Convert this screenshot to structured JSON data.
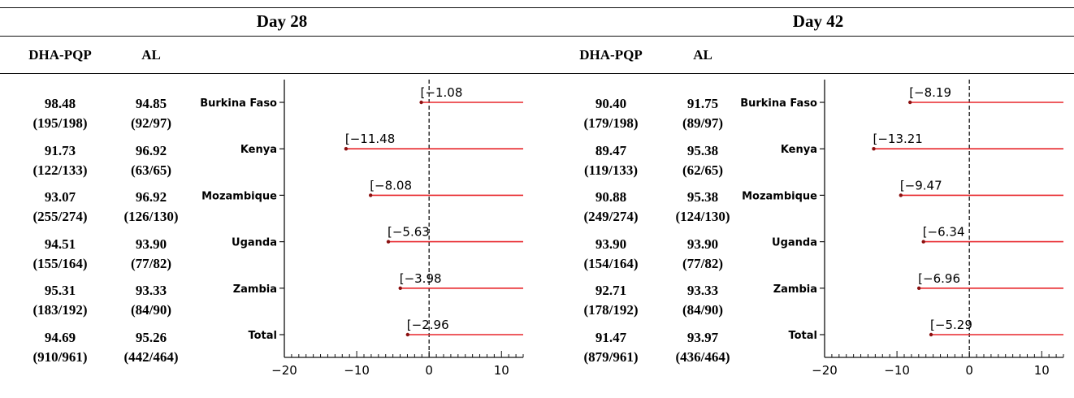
{
  "days": [
    "Day 28",
    "Day 42"
  ],
  "col_headers": [
    "DHA-PQP",
    "AL"
  ],
  "chart_data": [
    {
      "type": "forest",
      "title": "Day 28",
      "categories": [
        "Burkina Faso",
        "Kenya",
        "Mozambique",
        "Uganda",
        "Zambia",
        "Total"
      ],
      "dha_pqp": [
        "98.48",
        "91.73",
        "93.07",
        "94.51",
        "95.31",
        "94.69"
      ],
      "dha_pqp_n": [
        "(195/198)",
        "(122/133)",
        "(255/274)",
        "(155/164)",
        "(183/192)",
        "(910/961)"
      ],
      "al": [
        "94.85",
        "96.92",
        "96.92",
        "93.90",
        "93.33",
        "95.26"
      ],
      "al_n": [
        "(92/97)",
        "(63/65)",
        "(126/130)",
        "(77/82)",
        "(84/90)",
        "(442/464)"
      ],
      "lower_labels": [
        "[−1.08",
        "[−11.48",
        "[−8.08",
        "[−5.63",
        "[−3.98",
        "[−2.96"
      ],
      "lower": [
        -1.08,
        -11.48,
        -8.08,
        -5.63,
        -3.98,
        -2.96
      ],
      "xlim": [
        -20,
        13
      ],
      "xticks": [
        -20,
        -10,
        0,
        10
      ],
      "reference_line": 0
    },
    {
      "type": "forest",
      "title": "Day 42",
      "categories": [
        "Burkina Faso",
        "Kenya",
        "Mozambique",
        "Uganda",
        "Zambia",
        "Total"
      ],
      "dha_pqp": [
        "90.40",
        "89.47",
        "90.88",
        "93.90",
        "92.71",
        "91.47"
      ],
      "dha_pqp_n": [
        "(179/198)",
        "(119/133)",
        "(249/274)",
        "(154/164)",
        "(178/192)",
        "(879/961)"
      ],
      "al": [
        "91.75",
        "95.38",
        "95.38",
        "93.90",
        "93.33",
        "93.97"
      ],
      "al_n": [
        "(89/97)",
        "(62/65)",
        "(124/130)",
        "(77/82)",
        "(84/90)",
        "(436/464)"
      ],
      "lower_labels": [
        "[−8.19",
        "[−13.21",
        "[−9.47",
        "[−6.34",
        "[−6.96",
        "[−5.29"
      ],
      "lower": [
        -8.19,
        -13.21,
        -9.47,
        -6.34,
        -6.96,
        -5.29
      ],
      "xlim": [
        -20,
        13
      ],
      "xticks": [
        -20,
        -10,
        0,
        10
      ],
      "reference_line": 0
    }
  ],
  "colors": {
    "interval": "#e8262b",
    "point": "#8b1010",
    "axis": "#111111"
  }
}
